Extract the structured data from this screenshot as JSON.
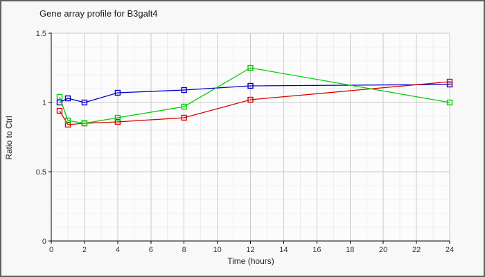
{
  "window": {
    "background": "#f8f8f8",
    "frame_color": "#5f5f5f",
    "plot_background": "#fcfcfc"
  },
  "chart_data": {
    "type": "line",
    "title": "Gene array profile for B3galt4",
    "xlabel": "Time (hours)",
    "ylabel": "Ratio to Ctrl",
    "xlim": [
      0,
      24
    ],
    "ylim": [
      0,
      1.5
    ],
    "xticks": [
      0,
      2,
      4,
      6,
      8,
      10,
      12,
      14,
      16,
      18,
      20,
      22,
      24
    ],
    "xtick_labels": [
      "0",
      "2",
      "4",
      "6",
      "8",
      "10",
      "12",
      "14",
      "16",
      "18",
      "20",
      "22",
      "24"
    ],
    "yticks": [
      0,
      0.5,
      1,
      1.5
    ],
    "ytick_labels": [
      "0",
      "0.5",
      "1",
      "1.5"
    ],
    "minor_x_step": 1,
    "minor_y_step": 0.1,
    "grid": true,
    "legend_position": "none",
    "marker": "open-square",
    "colors": {
      "axis": "#000000",
      "major_grid": "#c9c9c9",
      "minor_grid_v": "#ececec",
      "minor_grid_h": "#f1f1f1"
    },
    "x": [
      0.5,
      1,
      2,
      4,
      8,
      12,
      24
    ],
    "series": [
      {
        "name": "series-blue",
        "color": "#0000cc",
        "values": [
          1.0,
          1.03,
          1.0,
          1.07,
          1.09,
          1.12,
          1.13
        ]
      },
      {
        "name": "series-red",
        "color": "#dd0000",
        "values": [
          0.94,
          0.84,
          0.85,
          0.86,
          0.89,
          1.02,
          1.15
        ]
      },
      {
        "name": "series-green",
        "color": "#00cc00",
        "values": [
          1.04,
          0.87,
          0.85,
          0.89,
          0.97,
          1.25,
          1.0
        ]
      }
    ]
  }
}
